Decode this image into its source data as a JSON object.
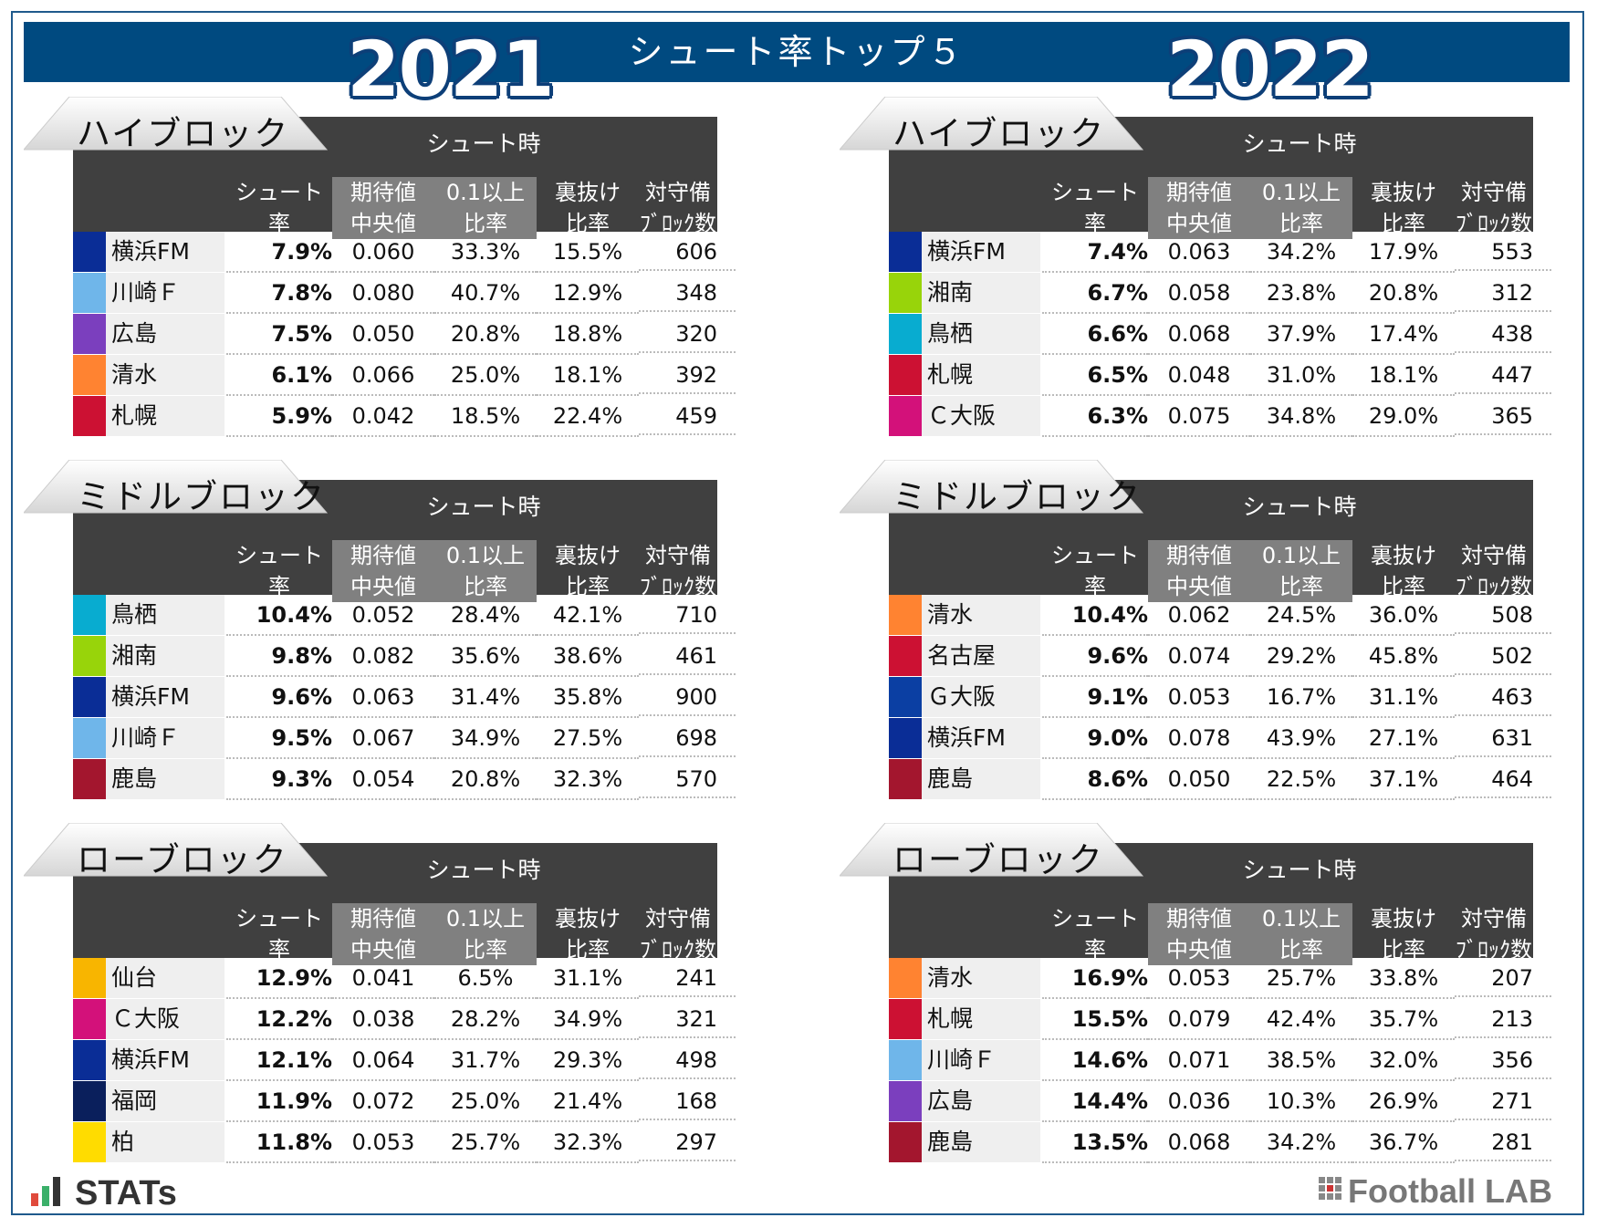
{
  "title": "シュート率トップ５",
  "years": [
    "2021",
    "2022"
  ],
  "header": {
    "group_label": "シュート時",
    "col1": [
      "シュート",
      "率"
    ],
    "col2": [
      "期待値",
      "中央値"
    ],
    "col3": [
      "0.1以上",
      "比率"
    ],
    "col4": [
      "裏抜け",
      "比率"
    ],
    "col5": [
      "対守備",
      "ﾌﾞﾛｯｸ数"
    ]
  },
  "logos": {
    "left": "STATs",
    "right": "Football LAB"
  },
  "colors": {
    "banner": "#004a80",
    "header": "#404040",
    "highlight_header": "#808080",
    "year_outline": "#0d3f78"
  },
  "chart_data": [
    {
      "type": "table",
      "year": "2021",
      "block": "ハイブロック",
      "rows": [
        {
          "team": "横浜FM",
          "color": "#0a2d96",
          "shot_rate": "7.9%",
          "xg_median": "0.060",
          "over_01": "33.3%",
          "behind": "15.5%",
          "def_blocks": "606"
        },
        {
          "team": "川崎Ｆ",
          "color": "#6fb6ea",
          "shot_rate": "7.8%",
          "xg_median": "0.080",
          "over_01": "40.7%",
          "behind": "12.9%",
          "def_blocks": "348"
        },
        {
          "team": "広島",
          "color": "#7b3fbe",
          "shot_rate": "7.5%",
          "xg_median": "0.050",
          "over_01": "20.8%",
          "behind": "18.8%",
          "def_blocks": "320"
        },
        {
          "team": "清水",
          "color": "#ff8331",
          "shot_rate": "6.1%",
          "xg_median": "0.066",
          "over_01": "25.0%",
          "behind": "18.1%",
          "def_blocks": "392"
        },
        {
          "team": "札幌",
          "color": "#cc1133",
          "shot_rate": "5.9%",
          "xg_median": "0.042",
          "over_01": "18.5%",
          "behind": "22.4%",
          "def_blocks": "459"
        }
      ]
    },
    {
      "type": "table",
      "year": "2022",
      "block": "ハイブロック",
      "rows": [
        {
          "team": "横浜FM",
          "color": "#0a2d96",
          "shot_rate": "7.4%",
          "xg_median": "0.063",
          "over_01": "34.2%",
          "behind": "17.9%",
          "def_blocks": "553"
        },
        {
          "team": "湘南",
          "color": "#98d40a",
          "shot_rate": "6.7%",
          "xg_median": "0.058",
          "over_01": "23.8%",
          "behind": "20.8%",
          "def_blocks": "312"
        },
        {
          "team": "鳥栖",
          "color": "#08acd0",
          "shot_rate": "6.6%",
          "xg_median": "0.068",
          "over_01": "37.9%",
          "behind": "17.4%",
          "def_blocks": "438"
        },
        {
          "team": "札幌",
          "color": "#cc1133",
          "shot_rate": "6.5%",
          "xg_median": "0.048",
          "over_01": "31.0%",
          "behind": "18.1%",
          "def_blocks": "447"
        },
        {
          "team": "Ｃ大阪",
          "color": "#d3117a",
          "shot_rate": "6.3%",
          "xg_median": "0.075",
          "over_01": "34.8%",
          "behind": "29.0%",
          "def_blocks": "365"
        }
      ]
    },
    {
      "type": "table",
      "year": "2021",
      "block": "ミドルブロック",
      "rows": [
        {
          "team": "鳥栖",
          "color": "#08acd0",
          "shot_rate": "10.4%",
          "xg_median": "0.052",
          "over_01": "28.4%",
          "behind": "42.1%",
          "def_blocks": "710"
        },
        {
          "team": "湘南",
          "color": "#98d40a",
          "shot_rate": "9.8%",
          "xg_median": "0.082",
          "over_01": "35.6%",
          "behind": "38.6%",
          "def_blocks": "461"
        },
        {
          "team": "横浜FM",
          "color": "#0a2d96",
          "shot_rate": "9.6%",
          "xg_median": "0.063",
          "over_01": "31.4%",
          "behind": "35.8%",
          "def_blocks": "900"
        },
        {
          "team": "川崎Ｆ",
          "color": "#6fb6ea",
          "shot_rate": "9.5%",
          "xg_median": "0.067",
          "over_01": "34.9%",
          "behind": "27.5%",
          "def_blocks": "698"
        },
        {
          "team": "鹿島",
          "color": "#a3162e",
          "shot_rate": "9.3%",
          "xg_median": "0.054",
          "over_01": "20.8%",
          "behind": "32.3%",
          "def_blocks": "570"
        }
      ]
    },
    {
      "type": "table",
      "year": "2022",
      "block": "ミドルブロック",
      "rows": [
        {
          "team": "清水",
          "color": "#ff8331",
          "shot_rate": "10.4%",
          "xg_median": "0.062",
          "over_01": "24.5%",
          "behind": "36.0%",
          "def_blocks": "508"
        },
        {
          "team": "名古屋",
          "color": "#cc1133",
          "shot_rate": "9.6%",
          "xg_median": "0.074",
          "over_01": "29.2%",
          "behind": "45.8%",
          "def_blocks": "502"
        },
        {
          "team": "Ｇ大阪",
          "color": "#0b3fa3",
          "shot_rate": "9.1%",
          "xg_median": "0.053",
          "over_01": "16.7%",
          "behind": "31.1%",
          "def_blocks": "463"
        },
        {
          "team": "横浜FM",
          "color": "#0a2d96",
          "shot_rate": "9.0%",
          "xg_median": "0.078",
          "over_01": "43.9%",
          "behind": "27.1%",
          "def_blocks": "631"
        },
        {
          "team": "鹿島",
          "color": "#a3162e",
          "shot_rate": "8.6%",
          "xg_median": "0.050",
          "over_01": "22.5%",
          "behind": "37.1%",
          "def_blocks": "464"
        }
      ]
    },
    {
      "type": "table",
      "year": "2021",
      "block": "ローブロック",
      "rows": [
        {
          "team": "仙台",
          "color": "#f8b500",
          "shot_rate": "12.9%",
          "xg_median": "0.041",
          "over_01": "6.5%",
          "behind": "31.1%",
          "def_blocks": "241"
        },
        {
          "team": "Ｃ大阪",
          "color": "#d3117a",
          "shot_rate": "12.2%",
          "xg_median": "0.038",
          "over_01": "28.2%",
          "behind": "34.9%",
          "def_blocks": "321"
        },
        {
          "team": "横浜FM",
          "color": "#0a2d96",
          "shot_rate": "12.1%",
          "xg_median": "0.064",
          "over_01": "31.7%",
          "behind": "29.3%",
          "def_blocks": "498"
        },
        {
          "team": "福岡",
          "color": "#0a1f5c",
          "shot_rate": "11.9%",
          "xg_median": "0.072",
          "over_01": "25.0%",
          "behind": "21.4%",
          "def_blocks": "168"
        },
        {
          "team": "柏",
          "color": "#ffdc00",
          "shot_rate": "11.8%",
          "xg_median": "0.053",
          "over_01": "25.7%",
          "behind": "32.3%",
          "def_blocks": "297"
        }
      ]
    },
    {
      "type": "table",
      "year": "2022",
      "block": "ローブロック",
      "rows": [
        {
          "team": "清水",
          "color": "#ff8331",
          "shot_rate": "16.9%",
          "xg_median": "0.053",
          "over_01": "25.7%",
          "behind": "33.8%",
          "def_blocks": "207"
        },
        {
          "team": "札幌",
          "color": "#cc1133",
          "shot_rate": "15.5%",
          "xg_median": "0.079",
          "over_01": "42.4%",
          "behind": "35.7%",
          "def_blocks": "213"
        },
        {
          "team": "川崎Ｆ",
          "color": "#6fb6ea",
          "shot_rate": "14.6%",
          "xg_median": "0.071",
          "over_01": "38.5%",
          "behind": "32.0%",
          "def_blocks": "356"
        },
        {
          "team": "広島",
          "color": "#7b3fbe",
          "shot_rate": "14.4%",
          "xg_median": "0.036",
          "over_01": "10.3%",
          "behind": "26.9%",
          "def_blocks": "271"
        },
        {
          "team": "鹿島",
          "color": "#a3162e",
          "shot_rate": "13.5%",
          "xg_median": "0.068",
          "over_01": "34.2%",
          "behind": "36.7%",
          "def_blocks": "281"
        }
      ]
    }
  ]
}
